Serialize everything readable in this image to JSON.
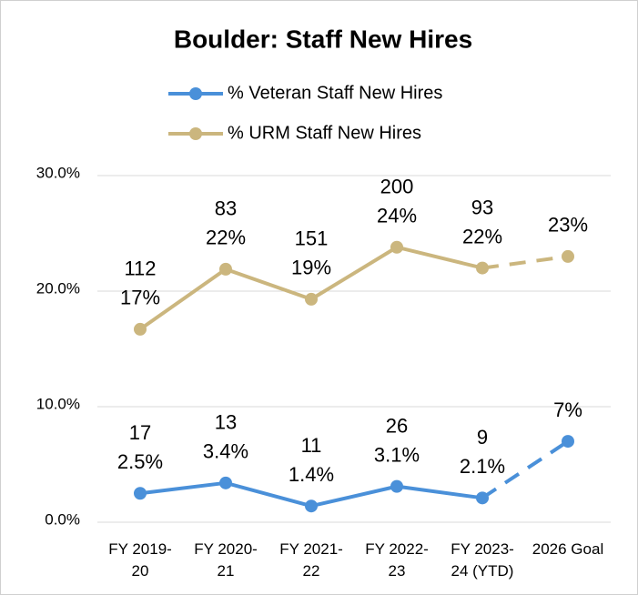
{
  "chart_data": {
    "type": "line",
    "title": "Boulder: Staff New Hires",
    "categories": [
      "FY 2019-20",
      "FY 2020-21",
      "FY 2021-22",
      "FY 2022-23",
      "FY 2023-24 (YTD)",
      "2026 Goal"
    ],
    "series": [
      {
        "name": "% Veteran Staff New Hires",
        "color": "#4a90d9",
        "values": [
          2.5,
          3.4,
          1.4,
          3.1,
          2.1,
          7
        ],
        "value_labels": [
          "2.5%",
          "3.4%",
          "1.4%",
          "3.1%",
          "2.1%",
          "7%"
        ],
        "counts": [
          17,
          13,
          11,
          26,
          9,
          null
        ]
      },
      {
        "name": "% URM Staff New Hires",
        "color": "#cbb67e",
        "values": [
          16.7,
          21.9,
          19.3,
          23.8,
          22.0,
          23
        ],
        "value_labels": [
          "17%",
          "22%",
          "19%",
          "24%",
          "22%",
          "23%"
        ],
        "counts": [
          112,
          83,
          151,
          200,
          93,
          null
        ]
      }
    ],
    "dashed_last_segment": true,
    "ylim": [
      0,
      30
    ],
    "yticks": [
      {
        "value": 0,
        "label": "0.0%"
      },
      {
        "value": 10,
        "label": "10.0%"
      },
      {
        "value": 20,
        "label": "20.0%"
      },
      {
        "value": 30,
        "label": "30.0%"
      }
    ],
    "grid": true
  }
}
